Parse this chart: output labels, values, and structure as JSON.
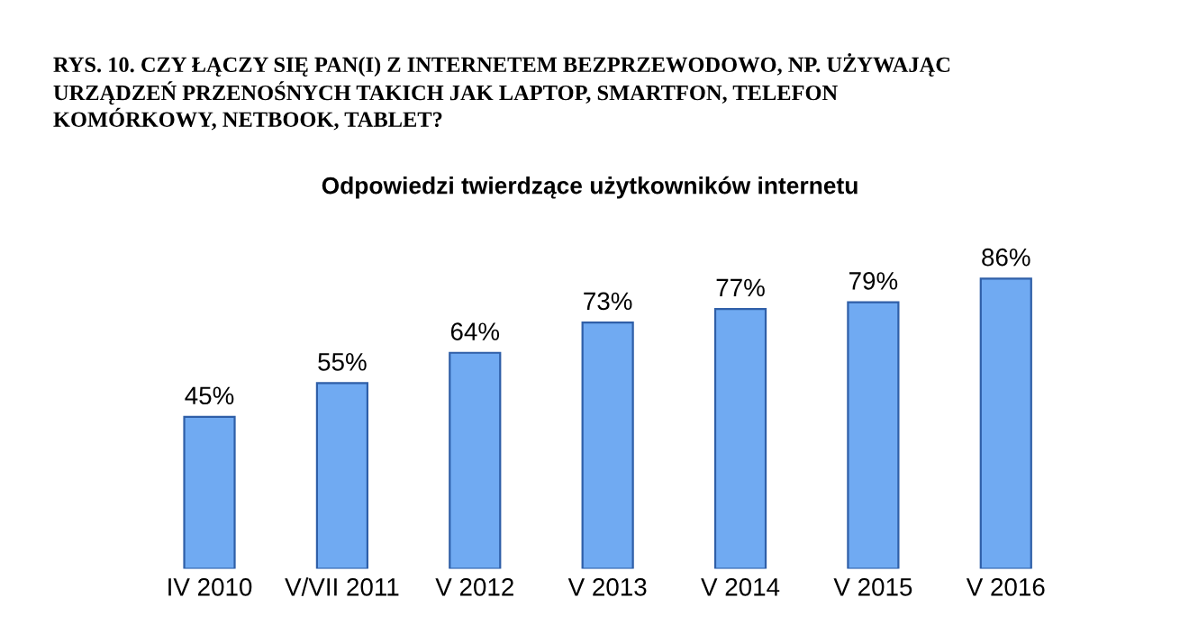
{
  "chart_data": {
    "type": "bar",
    "title": "RYS. 10. CZY ŁĄCZY SIĘ PAN(I) Z INTERNETEM BEZPRZEWODOWO, NP. UŻYWAJĄC\nURZĄDZEŃ PRZENOŚNYCH TAKICH JAK LAPTOP, SMARTFON, TELEFON\nKOMÓRKOWY, NETBOOK, TABLET?",
    "subtitle": "Odpowiedzi twierdzące użytkowników internetu",
    "categories": [
      "IV 2010",
      "V/VII 2011",
      "V 2012",
      "V 2013",
      "V 2014",
      "V 2015",
      "V 2016"
    ],
    "values": [
      45,
      55,
      64,
      73,
      77,
      79,
      86
    ],
    "value_labels": [
      "45%",
      "55%",
      "64%",
      "73%",
      "77%",
      "79%",
      "86%"
    ],
    "color": "#70aaf2"
  }
}
